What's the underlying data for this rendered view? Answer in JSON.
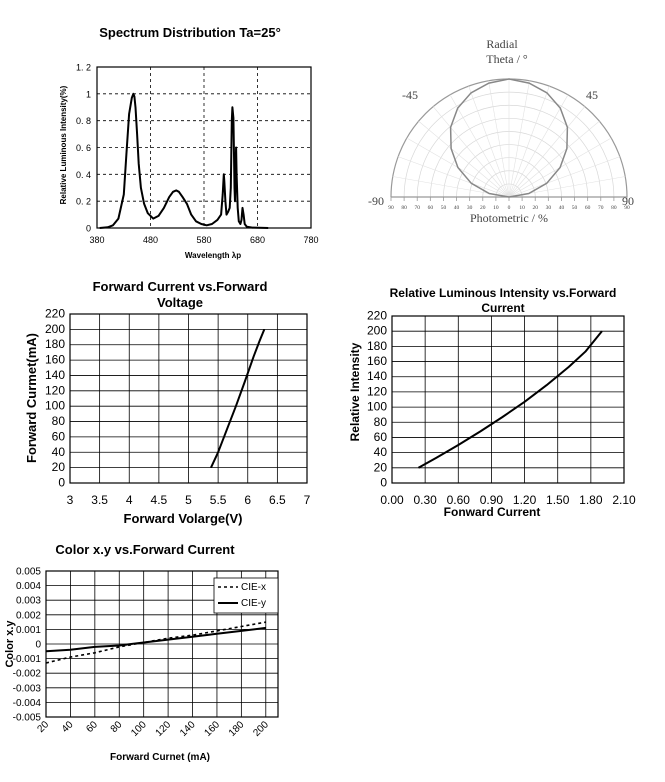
{
  "chart_data": [
    {
      "id": "spectrum",
      "type": "line",
      "title": "Spectrum Distribution Ta=25°",
      "xlabel": "Wavelength λp",
      "ylabel": "Relative Luminous Intensity(%)",
      "xlim": [
        380,
        780
      ],
      "ylim": [
        0,
        1.2
      ],
      "xticks": [
        "380",
        "480",
        "580",
        "680",
        "780"
      ],
      "yticks": [
        "0",
        "0. 2",
        "0. 4",
        "0. 6",
        "0. 8",
        "1",
        "1. 2"
      ],
      "grid": "dashed",
      "x": [
        385,
        400,
        410,
        420,
        430,
        435,
        440,
        445,
        448,
        450,
        452,
        455,
        458,
        462,
        468,
        475,
        485,
        495,
        505,
        515,
        522,
        528,
        533,
        540,
        548,
        556,
        565,
        575,
        585,
        595,
        605,
        612,
        615,
        617,
        618,
        620,
        622,
        625,
        628,
        630,
        632,
        633,
        635,
        636,
        637,
        638,
        639,
        640,
        641,
        643,
        645,
        648,
        650,
        652,
        654,
        656,
        660,
        670,
        700
      ],
      "y": [
        0,
        0.005,
        0.02,
        0.07,
        0.25,
        0.55,
        0.85,
        0.97,
        1.0,
        0.98,
        0.9,
        0.7,
        0.48,
        0.3,
        0.18,
        0.11,
        0.07,
        0.09,
        0.15,
        0.23,
        0.27,
        0.28,
        0.27,
        0.23,
        0.18,
        0.1,
        0.05,
        0.03,
        0.02,
        0.03,
        0.06,
        0.1,
        0.25,
        0.4,
        0.35,
        0.2,
        0.1,
        0.12,
        0.15,
        0.3,
        0.8,
        0.9,
        0.82,
        0.55,
        0.3,
        0.2,
        0.45,
        0.6,
        0.4,
        0.15,
        0.05,
        0.03,
        0.06,
        0.15,
        0.1,
        0.03,
        0.01,
        0.003,
        0
      ]
    },
    {
      "id": "radiation",
      "type": "polar",
      "labels": [
        "Radial",
        "Theta / °",
        "-45",
        "45",
        "-90",
        "90",
        "Photometric / %"
      ],
      "radial_ticks": [
        "90",
        "80",
        "70",
        "60",
        "50",
        "40",
        "30",
        "20",
        "10",
        "0",
        "10",
        "20",
        "30",
        "40",
        "50",
        "60",
        "70",
        "80",
        "90"
      ],
      "theta_deg": [
        0,
        10,
        20,
        30,
        40,
        50,
        60,
        70,
        80,
        90
      ],
      "relative_intensity": [
        1.0,
        0.98,
        0.94,
        0.87,
        0.77,
        0.64,
        0.5,
        0.34,
        0.17,
        0.0
      ]
    },
    {
      "id": "iv",
      "type": "line",
      "title": "Forward Current vs.Forward Voltage",
      "xlabel": "Forward Volarge(V)",
      "ylabel": "Forward Curmet(mA)",
      "xlim": [
        3,
        7
      ],
      "ylim": [
        0,
        220
      ],
      "xticks": [
        "3",
        "3.5",
        "4",
        "4.5",
        "5",
        "5.5",
        "6",
        "6.5",
        "7"
      ],
      "yticks": [
        "0",
        "20",
        "40",
        "60",
        "80",
        "100",
        "120",
        "140",
        "160",
        "180",
        "200",
        "220"
      ],
      "grid": "solid",
      "x": [
        5.38,
        5.5,
        5.65,
        5.8,
        5.95,
        6.1,
        6.2,
        6.28
      ],
      "y": [
        20,
        40,
        70,
        100,
        132,
        165,
        185,
        200
      ]
    },
    {
      "id": "li",
      "type": "line",
      "title": "Relative Luminous Intensity vs.Forward Current",
      "xlabel": "Fonward Current",
      "ylabel": "Relative Intensity",
      "xlim": [
        0.0,
        2.1
      ],
      "ylim": [
        0,
        220
      ],
      "xticks": [
        "0.00",
        "0.30",
        "0.60",
        "0.90",
        "1.20",
        "1.50",
        "1.80",
        "2.10"
      ],
      "yticks": [
        "0",
        "20",
        "40",
        "60",
        "80",
        "100",
        "120",
        "140",
        "160",
        "180",
        "200",
        "220"
      ],
      "grid": "solid",
      "x": [
        0.24,
        0.4,
        0.6,
        0.8,
        1.0,
        1.2,
        1.4,
        1.6,
        1.75,
        1.9
      ],
      "y": [
        20,
        33,
        50,
        68,
        87,
        107,
        129,
        153,
        173,
        200
      ]
    },
    {
      "id": "cie",
      "type": "line",
      "title": "Color x.y vs.Forward Current",
      "xlabel": "Forward Curnet (mA)",
      "ylabel": "Color x.y",
      "xlim": [
        20,
        210
      ],
      "ylim": [
        -0.005,
        0.005
      ],
      "xticks": [
        "20",
        "40",
        "60",
        "80",
        "100",
        "120",
        "140",
        "160",
        "180",
        "200"
      ],
      "yticks": [
        "-0.005",
        "-0.004",
        "-0.003",
        "-0.002",
        "-0.001",
        "0",
        "0.001",
        "0.002",
        "0.003",
        "0.004",
        "0.005"
      ],
      "grid": "solid",
      "legend": "top-right",
      "series": [
        {
          "name": "CIE-x",
          "style": "dashed",
          "x": [
            20,
            40,
            60,
            80,
            100,
            120,
            140,
            160,
            180,
            200
          ],
          "y": [
            -0.0013,
            -0.0009,
            -0.0006,
            -0.0002,
            0.0001,
            0.0004,
            0.0006,
            0.0009,
            0.0012,
            0.0015
          ]
        },
        {
          "name": "CIE-y",
          "style": "solid",
          "x": [
            20,
            40,
            60,
            80,
            100,
            120,
            140,
            160,
            180,
            200
          ],
          "y": [
            -0.0005,
            -0.0004,
            -0.0002,
            -0.0001,
            0.0001,
            0.0003,
            0.0005,
            0.0007,
            0.0009,
            0.0011
          ]
        }
      ]
    }
  ]
}
